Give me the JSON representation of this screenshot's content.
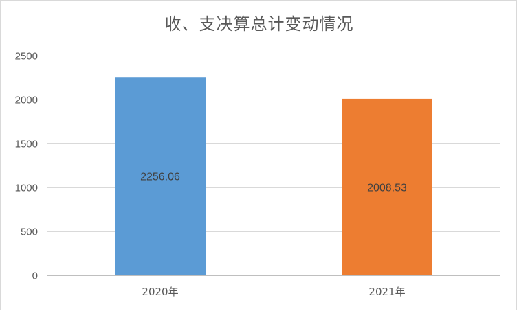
{
  "chart_data": {
    "type": "bar",
    "title": "收、支决算总计变动情况",
    "categories": [
      "2020年",
      "2021年"
    ],
    "values": [
      2256.06,
      2008.53
    ],
    "value_labels": [
      "2256.06",
      "2008.53"
    ],
    "bar_colors": [
      "#5B9BD5",
      "#ED7D31"
    ],
    "ylim": [
      0,
      2500
    ],
    "yticks": [
      0,
      500,
      1000,
      1500,
      2000,
      2500
    ],
    "grid": true,
    "legend": "none",
    "xlabel": "",
    "ylabel": ""
  }
}
